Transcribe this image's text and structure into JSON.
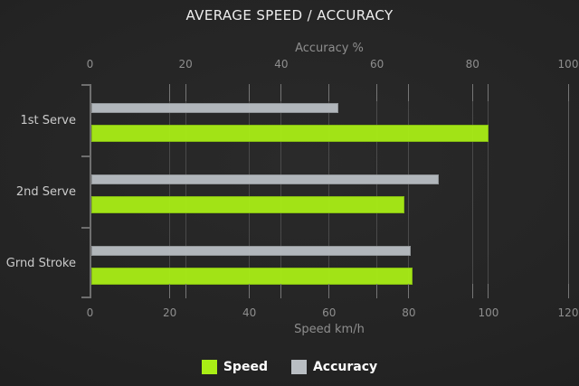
{
  "chart_data": {
    "type": "bar",
    "orientation": "horizontal",
    "title": "AVERAGE SPEED / ACCURACY",
    "categories": [
      "1st Serve",
      "2nd Serve",
      "Grnd Stroke"
    ],
    "series": [
      {
        "name": "Speed",
        "axis": "bottom",
        "color": "#a9ee16",
        "values": [
          100,
          79,
          81
        ]
      },
      {
        "name": "Accuracy",
        "axis": "top",
        "color": "#b9bec3",
        "values": [
          52,
          73,
          67
        ]
      }
    ],
    "axes": {
      "top": {
        "title": "Accuracy %",
        "min": 0,
        "max": 100,
        "ticks": [
          0,
          20,
          40,
          60,
          80,
          100
        ]
      },
      "bottom": {
        "title": "Speed km/h",
        "min": 0,
        "max": 120,
        "ticks": [
          0,
          20,
          40,
          60,
          80,
          100,
          120
        ]
      }
    },
    "legend": {
      "position": "bottom",
      "items": [
        {
          "label": "Speed",
          "color": "#a9ee16"
        },
        {
          "label": "Accuracy",
          "color": "#b9bec3"
        }
      ]
    },
    "grid": true,
    "background": "#232323",
    "text_color": "#8e8e8e"
  }
}
